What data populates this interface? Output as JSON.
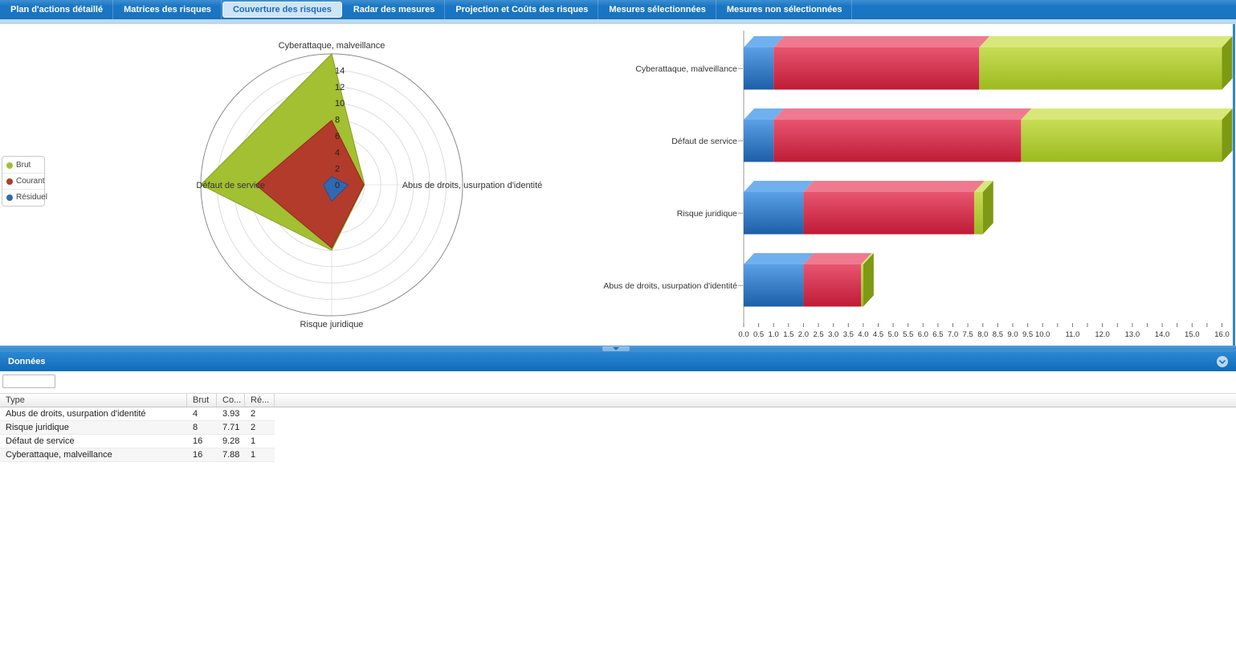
{
  "tabs": {
    "items": [
      {
        "label": "Plan d'actions détaillé",
        "active": false
      },
      {
        "label": "Matrices des risques",
        "active": false
      },
      {
        "label": "Couverture des risques",
        "active": true
      },
      {
        "label": "Radar des mesures",
        "active": false
      },
      {
        "label": "Projection et Coûts des risques",
        "active": false
      },
      {
        "label": "Mesures sélectionnées",
        "active": false
      },
      {
        "label": "Mesures non sélectionnées",
        "active": false
      }
    ]
  },
  "chart_data": [
    {
      "type": "radar",
      "axes": [
        "Cyberattaque, malveillance",
        "Abus de droits, usurpation d'identité",
        "Risque juridique",
        "Défaut de service"
      ],
      "series": [
        {
          "name": "Brut",
          "color": "#a3bf32",
          "stroke": "#86a01f",
          "values": [
            16,
            4,
            8,
            16
          ]
        },
        {
          "name": "Courant",
          "color": "#b23b2b",
          "stroke": "#932c1c",
          "values": [
            7.88,
            3.93,
            7.71,
            9.28
          ]
        },
        {
          "name": "Résiduel",
          "color": "#3169b1",
          "stroke": "#1f5195",
          "values": [
            1,
            2,
            2,
            1
          ]
        }
      ],
      "r_tick_labels": [
        "0",
        "2",
        "4",
        "6",
        "8",
        "10",
        "12",
        "14"
      ],
      "r_max": 16,
      "grid": "circles-every-2",
      "legend_position": "left"
    },
    {
      "type": "bar",
      "orientation": "horizontal-3d",
      "categories": [
        "Cyberattaque, malveillance",
        "Défaut de service",
        "Risque juridique",
        "Abus de droits, usurpation d'identité"
      ],
      "series": [
        {
          "name": "Résiduel",
          "color": "#2f7ccb",
          "values": [
            1,
            1,
            2,
            2
          ]
        },
        {
          "name": "Courant",
          "color": "#d32747",
          "values": [
            7.88,
            9.28,
            7.71,
            3.93
          ]
        },
        {
          "name": "Brut",
          "color": "#aac928",
          "values": [
            16,
            16,
            8,
            4
          ]
        }
      ],
      "xlim": [
        0,
        16
      ],
      "x_tick_labels": [
        "0.0",
        "0.5",
        "1.0",
        "1.5",
        "2.0",
        "2.5",
        "3.0",
        "3.5",
        "4.0",
        "4.5",
        "5.0",
        "5.5",
        "6.0",
        "6.5",
        "7.0",
        "7.5",
        "8.0",
        "8.5",
        "9.0",
        "9.5",
        "10.0",
        "11.0",
        "12.0",
        "13.0",
        "14.0",
        "15.0",
        "16.0"
      ],
      "legend": "none",
      "gridlines": "off"
    }
  ],
  "donnees": {
    "title": "Données",
    "filter_value": "",
    "columns": [
      "Type",
      "Brut",
      "Co...",
      "Ré..."
    ],
    "rows": [
      [
        "Abus de droits, usurpation d'identité",
        "4",
        "3.93",
        "2"
      ],
      [
        "Risque juridique",
        "8",
        "7.71",
        "2"
      ],
      [
        "Défaut de service",
        "16",
        "9.28",
        "1"
      ],
      [
        "Cyberattaque, malveillance",
        "16",
        "7.88",
        "1"
      ]
    ]
  },
  "icons": {
    "panel_collapse": "chevron-down-circle",
    "splitter_grip": "drag-handle-down"
  },
  "colors": {
    "tabbar": "#1873c0",
    "active_tab_bg": "#cfe4f7",
    "active_tab_text": "#1a6db6",
    "panel_header": "#1478c8",
    "splitter": "#3e8ed2",
    "bar_blue": "#2f7ccb",
    "bar_red": "#d32747",
    "bar_green": "#aac928"
  }
}
